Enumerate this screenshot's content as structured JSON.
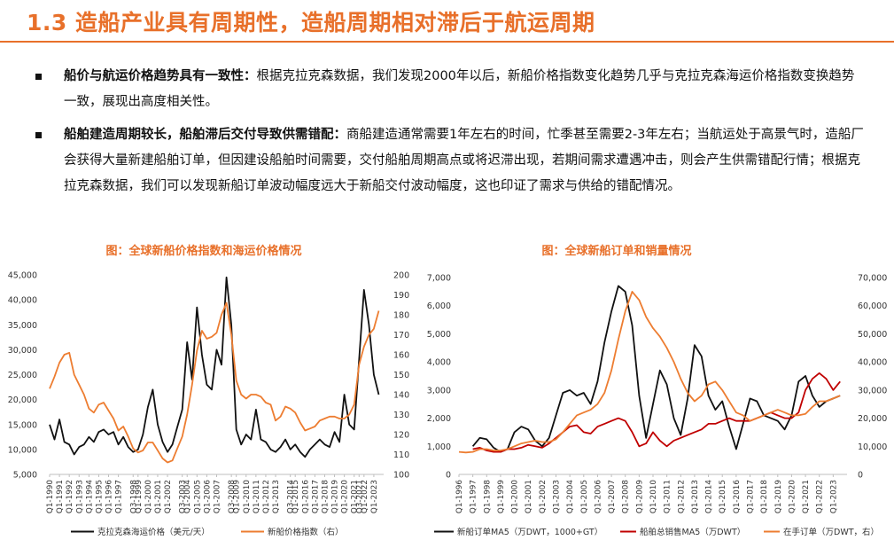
{
  "header": {
    "title": "1.3 造船产业具有周期性，造船周期相对滞后于航运周期"
  },
  "bullets": [
    {
      "lead": "船价与航运价格趋势具有一致性：",
      "text": "根据克拉克森数据，我们发现2000年以后，新船价格指数变化趋势几乎与克拉克森海运价格指数变换趋势一致，展现出高度相关性。"
    },
    {
      "lead": "船舶建造周期较长，船舶滞后交付导致供需错配：",
      "text": "商船建造通常需要1年左右的时间，忙季甚至需要2-3年左右；当航运处于高景气时，造船厂会获得大量新建船舶订单，但因建设船舶时间需要，交付船舶周期高点或将迟滞出现，若期间需求遭遇冲击，则会产生供需错配行情；根据克拉克森数据，我们可以发现新船订单波动幅度远大于新船交付波动幅度，这也印证了需求与供给的错配情况。"
    }
  ],
  "chart_data": [
    {
      "type": "line",
      "title": "图：全球新船价格指数和海运价格情况",
      "x_ticks": [
        "Q1-1990",
        "Q1-1991",
        "Q1-1992",
        "Q1-1993",
        "Q1-1994",
        "Q1-1995",
        "Q1-1996",
        "Q1-1997",
        "Q3-1998",
        "Q1-1999",
        "Q1-2000",
        "Q1-2001",
        "Q1-2002",
        "Q3-2003",
        "Q1-2004",
        "Q1-2005",
        "Q1-2006",
        "Q1-2007",
        "Q3-2008",
        "Q1-2009",
        "Q1-2010",
        "Q1-2011",
        "Q1-2012",
        "Q1-2013",
        "Q3-2014",
        "Q1-2015",
        "Q1-2016",
        "Q1-2017",
        "Q1-2018",
        "Q1-2019",
        "Q1-2020",
        "Q1-2021",
        "Q3-2021",
        "Q1-2022",
        "Q1-2023"
      ],
      "y_left": {
        "min": 5000,
        "max": 45000,
        "step": 5000,
        "ticks": [
          "5,000",
          "10,000",
          "15,000",
          "20,000",
          "25,000",
          "30,000",
          "35,000",
          "40,000",
          "45,000"
        ]
      },
      "y_right": {
        "min": 100,
        "max": 200,
        "step": 10,
        "ticks": [
          "100",
          "110",
          "120",
          "130",
          "140",
          "150",
          "160",
          "170",
          "180",
          "190",
          "200"
        ]
      },
      "series": [
        {
          "name": "克拉克森海运价格（美元/天）",
          "axis": "left",
          "color": "#111111",
          "x": [
            1990.0,
            1990.5,
            1991.0,
            1991.5,
            1992.0,
            1992.5,
            1993.0,
            1993.5,
            1994.0,
            1994.5,
            1995.0,
            1995.5,
            1996.0,
            1996.5,
            1997.0,
            1997.5,
            1998.0,
            1998.5,
            1999.0,
            1999.5,
            2000.0,
            2000.5,
            2001.0,
            2001.5,
            2002.0,
            2002.5,
            2003.0,
            2003.5,
            2004.0,
            2004.5,
            2005.0,
            2005.5,
            2006.0,
            2006.5,
            2007.0,
            2007.5,
            2008.0,
            2008.5,
            2009.0,
            2009.5,
            2010.0,
            2010.5,
            2011.0,
            2011.5,
            2012.0,
            2012.5,
            2013.0,
            2013.5,
            2014.0,
            2014.5,
            2015.0,
            2015.5,
            2016.0,
            2016.5,
            2017.0,
            2017.5,
            2018.0,
            2018.5,
            2019.0,
            2019.5,
            2020.0,
            2020.5,
            2021.0,
            2021.5,
            2022.0,
            2022.5,
            2023.0,
            2023.5
          ],
          "y": [
            15000,
            12000,
            16000,
            11500,
            11000,
            9000,
            10500,
            11000,
            12500,
            11500,
            13500,
            14000,
            13000,
            13500,
            11000,
            12500,
            10500,
            9500,
            10000,
            13000,
            18500,
            22000,
            15000,
            11500,
            9500,
            11000,
            14500,
            18000,
            31500,
            24000,
            38500,
            29000,
            23000,
            22000,
            30000,
            27000,
            44500,
            35000,
            14000,
            11000,
            13000,
            12000,
            18000,
            12000,
            11500,
            10000,
            9500,
            10500,
            12000,
            10000,
            11000,
            9500,
            8500,
            10000,
            11000,
            12000,
            11000,
            10500,
            13500,
            11500,
            21000,
            15000,
            14000,
            28000,
            42000,
            35000,
            25000,
            21000
          ]
        },
        {
          "name": "新船价格指数（右）",
          "axis": "right",
          "color": "#ED7D31",
          "x": [
            1990.0,
            1990.5,
            1991.0,
            1991.5,
            1992.0,
            1992.5,
            1993.0,
            1993.5,
            1994.0,
            1994.5,
            1995.0,
            1995.5,
            1996.0,
            1996.5,
            1997.0,
            1997.5,
            1998.0,
            1998.5,
            1999.0,
            1999.5,
            2000.0,
            2000.5,
            2001.0,
            2001.5,
            2002.0,
            2002.5,
            2003.0,
            2003.5,
            2004.0,
            2004.5,
            2005.0,
            2005.5,
            2006.0,
            2006.5,
            2007.0,
            2007.5,
            2008.0,
            2008.5,
            2009.0,
            2009.5,
            2010.0,
            2010.5,
            2011.0,
            2011.5,
            2012.0,
            2012.5,
            2013.0,
            2013.5,
            2014.0,
            2014.5,
            2015.0,
            2015.5,
            2016.0,
            2016.5,
            2017.0,
            2017.5,
            2018.0,
            2018.5,
            2019.0,
            2019.5,
            2020.0,
            2020.5,
            2021.0,
            2021.5,
            2022.0,
            2022.5,
            2023.0,
            2023.5
          ],
          "y": [
            143,
            149,
            156,
            160,
            161,
            150,
            145,
            140,
            133,
            131,
            135,
            136,
            132,
            128,
            122,
            124,
            119,
            113,
            111,
            112,
            116,
            116,
            112,
            108,
            106,
            107,
            113,
            119,
            130,
            145,
            162,
            172,
            168,
            169,
            171,
            180,
            186,
            170,
            147,
            140,
            138,
            140,
            140,
            139,
            136,
            135,
            127,
            129,
            134,
            133,
            131,
            126,
            122,
            123,
            124,
            127,
            128,
            129,
            129,
            128,
            128,
            130,
            135,
            155,
            164,
            170,
            173,
            182
          ]
        }
      ]
    },
    {
      "type": "line",
      "title": "图：全球新船订单和销量情况",
      "x_ticks": [
        "Q1-1996",
        "Q1-1997",
        "Q1-1998",
        "Q1-1999",
        "Q1-2000",
        "Q1-2001",
        "Q1-2002",
        "Q1-2003",
        "Q1-2004",
        "Q1-2005",
        "Q1-2006",
        "Q1-2007",
        "Q1-2008",
        "Q1-2009",
        "Q1-2010",
        "Q1-2011",
        "Q1-2012",
        "Q1-2013",
        "Q1-2014",
        "Q1-2015",
        "Q1-2016",
        "Q1-2017",
        "Q1-2018",
        "Q1-2019",
        "Q1-2020",
        "Q1-2021",
        "Q1-2022",
        "Q1-2023"
      ],
      "y_left": {
        "min": 0,
        "max": 7000,
        "step": 1000,
        "ticks": [
          "0",
          "1,000",
          "2,000",
          "3,000",
          "4,000",
          "5,000",
          "6,000",
          "7,000"
        ]
      },
      "y_right": {
        "min": 0,
        "max": 70000,
        "step": 10000,
        "ticks": [
          "0",
          "10,000",
          "20,000",
          "30,000",
          "40,000",
          "50,000",
          "60,000",
          "70,000"
        ]
      },
      "series": [
        {
          "name": "新船订单MA5（万DWT，1000+GT）",
          "axis": "left",
          "color": "#111111",
          "x": [
            1997.0,
            1997.5,
            1998.0,
            1998.5,
            1999.0,
            1999.5,
            2000.0,
            2000.5,
            2001.0,
            2001.5,
            2002.0,
            2002.5,
            2003.0,
            2003.5,
            2004.0,
            2004.5,
            2005.0,
            2005.5,
            2006.0,
            2006.5,
            2007.0,
            2007.5,
            2008.0,
            2008.5,
            2009.0,
            2009.5,
            2010.0,
            2010.5,
            2011.0,
            2011.5,
            2012.0,
            2012.5,
            2013.0,
            2013.5,
            2014.0,
            2014.5,
            2015.0,
            2015.5,
            2016.0,
            2016.5,
            2017.0,
            2017.5,
            2018.0,
            2018.5,
            2019.0,
            2019.5,
            2020.0,
            2020.5,
            2021.0,
            2021.5,
            2022.0,
            2022.5,
            2023.0,
            2023.5
          ],
          "y": [
            1000,
            1300,
            1250,
            950,
            800,
            900,
            1500,
            1700,
            1600,
            1200,
            1000,
            1300,
            2100,
            2900,
            3000,
            2800,
            2900,
            2500,
            3300,
            4700,
            5800,
            6700,
            6500,
            5300,
            2800,
            1300,
            2500,
            3700,
            3200,
            2000,
            1400,
            2700,
            4600,
            4200,
            2800,
            2300,
            2600,
            1700,
            900,
            1800,
            2700,
            2600,
            2100,
            2000,
            1900,
            1600,
            2100,
            3300,
            3500,
            2800,
            2400,
            2600,
            2700,
            2800
          ]
        },
        {
          "name": "船舶总销售MA5（万DWT）",
          "axis": "left",
          "color": "#C00000",
          "x": [
            1997.0,
            1997.5,
            1998.0,
            1998.5,
            1999.0,
            1999.5,
            2000.0,
            2000.5,
            2001.0,
            2001.5,
            2002.0,
            2002.5,
            2003.0,
            2003.5,
            2004.0,
            2004.5,
            2005.0,
            2005.5,
            2006.0,
            2006.5,
            2007.0,
            2007.5,
            2008.0,
            2008.5,
            2009.0,
            2009.5,
            2010.0,
            2010.5,
            2011.0,
            2011.5,
            2012.0,
            2012.5,
            2013.0,
            2013.5,
            2014.0,
            2014.5,
            2015.0,
            2015.5,
            2016.0,
            2016.5,
            2017.0,
            2017.5,
            2018.0,
            2018.5,
            2019.0,
            2019.5,
            2020.0,
            2020.5,
            2021.0,
            2021.5,
            2022.0,
            2022.5,
            2023.0,
            2023.5
          ],
          "y": [
            900,
            950,
            850,
            800,
            800,
            900,
            900,
            950,
            1050,
            1000,
            950,
            1100,
            1300,
            1500,
            1700,
            1750,
            1500,
            1450,
            1700,
            1800,
            1900,
            2000,
            1900,
            1500,
            1000,
            1100,
            1500,
            1200,
            1000,
            1200,
            1300,
            1400,
            1500,
            1600,
            1800,
            1800,
            1900,
            2000,
            1900,
            1900,
            1900,
            2000,
            2100,
            2200,
            2100,
            2000,
            2000,
            2200,
            3000,
            3400,
            3600,
            3400,
            3000,
            3300
          ]
        },
        {
          "name": "在手订单（万DWT，右）",
          "axis": "right",
          "color": "#ED7D31",
          "x": [
            1996.0,
            1996.5,
            1997.0,
            1997.5,
            1998.0,
            1998.5,
            1999.0,
            1999.5,
            2000.0,
            2000.5,
            2001.0,
            2001.5,
            2002.0,
            2002.5,
            2003.0,
            2003.5,
            2004.0,
            2004.5,
            2005.0,
            2005.5,
            2006.0,
            2006.5,
            2007.0,
            2007.5,
            2008.0,
            2008.5,
            2009.0,
            2009.5,
            2010.0,
            2010.5,
            2011.0,
            2011.5,
            2012.0,
            2012.5,
            2013.0,
            2013.5,
            2014.0,
            2014.5,
            2015.0,
            2015.5,
            2016.0,
            2016.5,
            2017.0,
            2017.5,
            2018.0,
            2018.5,
            2019.0,
            2019.5,
            2020.0,
            2020.5,
            2021.0,
            2021.5,
            2022.0,
            2022.5,
            2023.0,
            2023.5
          ],
          "y": [
            8000,
            7800,
            8000,
            9000,
            9000,
            8500,
            8500,
            9000,
            10000,
            11000,
            11500,
            12000,
            11500,
            11500,
            12500,
            15000,
            18000,
            21000,
            22000,
            23000,
            25000,
            29000,
            37000,
            48000,
            58000,
            65000,
            62000,
            56000,
            52000,
            49000,
            45000,
            40000,
            34000,
            29000,
            26000,
            28000,
            32000,
            33000,
            30000,
            26000,
            22000,
            21000,
            19000,
            20000,
            21000,
            22000,
            23000,
            22000,
            21000,
            21000,
            21500,
            24000,
            26000,
            26000,
            27000,
            28000
          ]
        }
      ]
    }
  ]
}
